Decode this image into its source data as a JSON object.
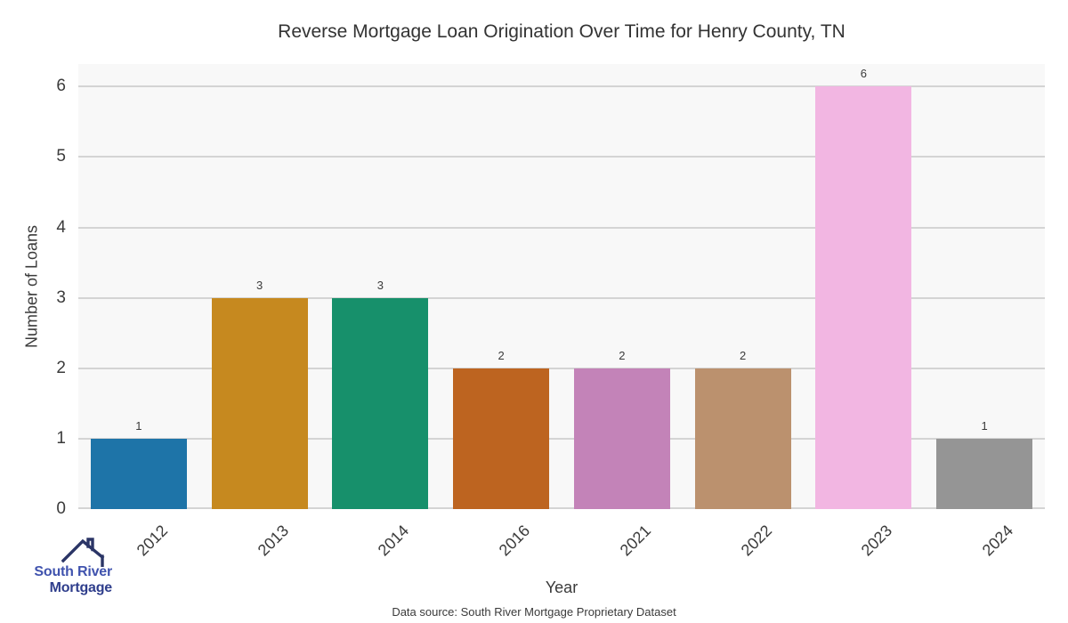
{
  "chart_data": {
    "type": "bar",
    "title": "Reverse Mortgage Loan Origination Over Time for Henry County, TN",
    "categories": [
      "2012",
      "2013",
      "2014",
      "2016",
      "2021",
      "2022",
      "2023",
      "2024"
    ],
    "values": [
      1,
      3,
      3,
      2,
      2,
      2,
      6,
      1
    ],
    "bar_colors": [
      "#1e74a8",
      "#c6891f",
      "#17906b",
      "#bd6420",
      "#c383b8",
      "#bb916e",
      "#f2b6e2",
      "#959595"
    ],
    "xlabel": "Year",
    "ylabel": "Number of Loans",
    "yticks": [
      0,
      1,
      2,
      3,
      4,
      5,
      6
    ],
    "ylim": [
      0,
      6.32
    ],
    "grid": true,
    "legend": "none",
    "value_labels": true
  },
  "footer": {
    "data_source": "Data source: South River Mortgage Proprietary Dataset"
  },
  "logo": {
    "line1": "South River",
    "line2": "Mortgage",
    "icon": "house-roof-icon",
    "colors": {
      "roof": "#2b3566",
      "line1": "#4053ae",
      "line2": "#2f3e8c"
    }
  },
  "colors": {
    "plot_background": "#f8f8f8",
    "gridline": "#d4d4d4",
    "text": "#3a3a3a"
  }
}
